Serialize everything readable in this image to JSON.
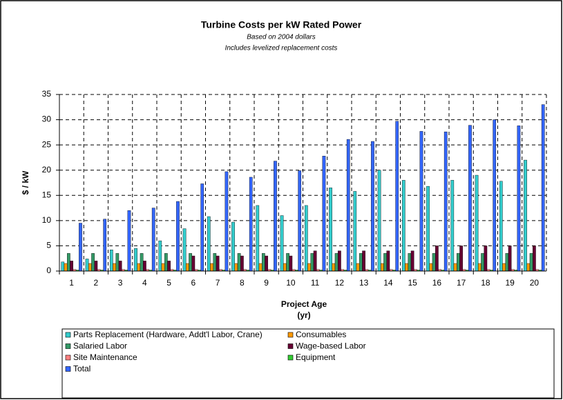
{
  "chart_data": {
    "type": "bar",
    "title": "Turbine Costs per kW Rated Power",
    "subtitle": [
      "Based on 2004 dollars",
      "Includes levelized replacement costs"
    ],
    "x_label": [
      "Project Age",
      "(yr)"
    ],
    "y_label": "$ / kW",
    "categories": [
      "1",
      "2",
      "3",
      "4",
      "5",
      "6",
      "7",
      "8",
      "9",
      "10",
      "11",
      "12",
      "13",
      "14",
      "15",
      "16",
      "17",
      "18",
      "19",
      "20"
    ],
    "series": [
      {
        "name": "Parts Replacement (Hardware, Addt'l Labor, Crane)",
        "color": "#33CCCC",
        "values": [
          1.8,
          2.4,
          4.2,
          4.5,
          6,
          8.4,
          10.8,
          9.7,
          13,
          11,
          13,
          16.5,
          15.8,
          20,
          18,
          16.8,
          18,
          19,
          17.8,
          22
        ]
      },
      {
        "name": "Consumables",
        "color": "#FF9900",
        "values": [
          1.5,
          1.5,
          1.5,
          1.5,
          1.5,
          1.5,
          1.5,
          1.5,
          1.5,
          1.5,
          1.5,
          1.5,
          1.5,
          1.5,
          1.5,
          1.5,
          1.5,
          1.5,
          1.5,
          1.5
        ]
      },
      {
        "name": "Salaried Labor",
        "color": "#339966",
        "values": [
          3.5,
          3.5,
          3.5,
          3.5,
          3.5,
          3.5,
          3.5,
          3.5,
          3.5,
          3.5,
          3.5,
          3.5,
          3.5,
          3.5,
          3.5,
          3.5,
          3.5,
          3.5,
          3.5,
          3.5
        ]
      },
      {
        "name": "Wage-based Labor",
        "color": "#660033",
        "values": [
          2,
          2,
          2,
          2,
          2,
          3,
          3,
          3,
          3,
          3,
          4,
          4,
          4,
          4,
          4,
          5,
          5,
          5,
          5,
          5
        ]
      },
      {
        "name": "Site Maintenance",
        "color": "#FF8080",
        "values": [
          0.3,
          0.3,
          0.3,
          0.3,
          0.3,
          0.3,
          0.3,
          0.3,
          0.3,
          0.3,
          0.3,
          0.3,
          0.3,
          0.3,
          0.3,
          0.3,
          0.3,
          0.3,
          0.3,
          0.3
        ]
      },
      {
        "name": "Equipment",
        "color": "#33CC33",
        "values": [
          0.2,
          0.2,
          0.2,
          0.2,
          0.2,
          0.2,
          0.2,
          0.2,
          0.2,
          0.2,
          0.2,
          0.2,
          0.2,
          0.2,
          0.2,
          0.2,
          0.2,
          0.2,
          0.2,
          0.2
        ]
      },
      {
        "name": "Total",
        "color": "#3366FF",
        "values": [
          9.5,
          10.3,
          12,
          12.5,
          13.8,
          17.3,
          19.7,
          18.6,
          21.8,
          19.9,
          22.8,
          26.1,
          25.7,
          29.7,
          27.7,
          27.6,
          28.9,
          30,
          28.8,
          33
        ]
      }
    ],
    "ylim": [
      0,
      35
    ],
    "yticks": [
      0,
      5,
      10,
      15,
      20,
      25,
      30,
      35
    ],
    "grid": true
  }
}
